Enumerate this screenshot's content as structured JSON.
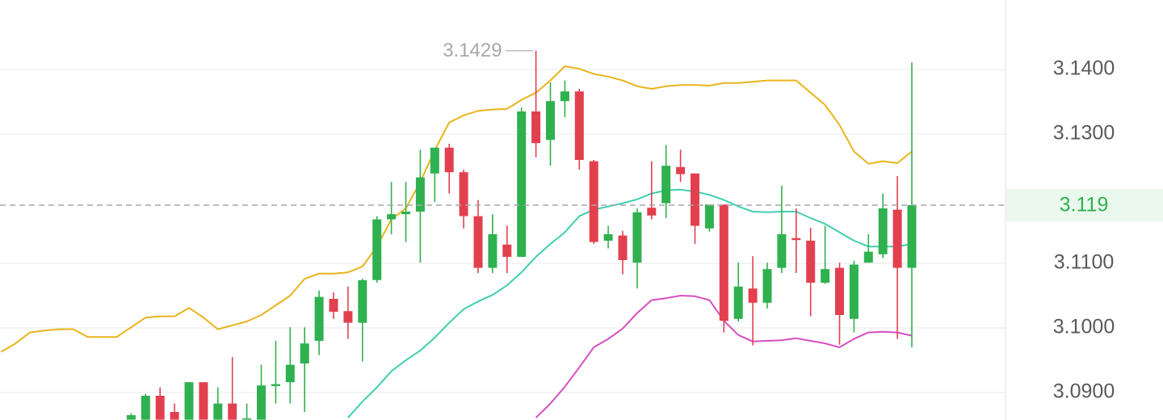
{
  "chart_data": {
    "type": "candlestick",
    "open": [
      null,
      null,
      null,
      null,
      null,
      null,
      null,
      null,
      null,
      3.0858,
      3.0858,
      3.0895,
      3.087,
      3.0858,
      3.0916,
      3.0858,
      3.0883,
      3.0858,
      3.0858,
      3.091,
      3.0916,
      3.0945,
      3.098,
      3.1045,
      3.1026,
      3.1008,
      3.1074,
      3.1168,
      3.1176,
      3.118,
      3.1239,
      3.1279,
      3.1241,
      3.1173,
      3.1093,
      3.1129,
      3.111,
      3.1335,
      3.1291,
      3.1351,
      3.1366,
      3.1258,
      3.1135,
      3.1143,
      3.1101,
      3.1186,
      3.1193,
      3.1249,
      3.1239,
      3.1154,
      3.1191,
      3.1014,
      3.1061,
      3.1039,
      3.1093,
      3.1139,
      3.1135,
      3.107,
      3.1093,
      3.1014,
      3.1101,
      3.1114,
      3.1183,
      3.1093
    ],
    "high": [
      null,
      null,
      null,
      null,
      null,
      null,
      null,
      null,
      null,
      3.0868,
      3.0898,
      3.0908,
      3.0883,
      3.0916,
      3.0916,
      3.0908,
      3.0955,
      3.0883,
      3.0943,
      3.098,
      3.1001,
      3.1001,
      3.1058,
      3.1055,
      3.1064,
      3.1076,
      3.1173,
      3.1226,
      3.1226,
      3.1276,
      3.1279,
      3.1285,
      3.1245,
      3.1198,
      3.1176,
      3.1158,
      3.1341,
      3.1429,
      3.138,
      3.1383,
      3.137,
      3.126,
      3.1158,
      3.115,
      3.1185,
      3.1258,
      3.1283,
      3.1276,
      3.1239,
      3.1191,
      3.1191,
      3.1101,
      3.1111,
      3.1101,
      3.122,
      3.1185,
      3.1155,
      3.1158,
      3.1101,
      3.1104,
      3.1145,
      3.1208,
      3.1235,
      3.1411
    ],
    "low": [
      null,
      null,
      null,
      null,
      null,
      null,
      null,
      null,
      null,
      3.0858,
      3.0858,
      3.0858,
      3.0858,
      3.0858,
      3.0858,
      3.0858,
      3.0858,
      3.0858,
      3.0858,
      3.0883,
      3.0883,
      3.087,
      3.0958,
      3.1014,
      3.0983,
      3.0948,
      3.107,
      3.1145,
      3.1133,
      3.1101,
      3.1195,
      3.1208,
      3.1154,
      3.1085,
      3.1085,
      3.1085,
      3.111,
      3.1264,
      3.1251,
      3.1326,
      3.1245,
      3.113,
      3.1123,
      3.1083,
      3.1061,
      3.1168,
      3.117,
      3.1226,
      3.113,
      3.1149,
      3.0993,
      3.101,
      3.0973,
      3.103,
      3.1085,
      3.1085,
      3.1018,
      3.1068,
      3.0974,
      3.0993,
      3.1101,
      3.1108,
      3.0983,
      3.097
    ],
    "close": [
      null,
      null,
      null,
      null,
      null,
      null,
      null,
      null,
      null,
      3.0865,
      3.0895,
      3.0858,
      3.0858,
      3.0916,
      3.0858,
      3.0883,
      3.0858,
      3.086,
      3.0911,
      3.0913,
      3.0943,
      3.0976,
      3.1048,
      3.1025,
      3.1008,
      3.1074,
      3.1168,
      3.1176,
      3.118,
      3.1233,
      3.1279,
      3.1241,
      3.1173,
      3.1093,
      3.1145,
      3.111,
      3.1335,
      3.1286,
      3.1351,
      3.1366,
      3.126,
      3.1133,
      3.1145,
      3.1105,
      3.1179,
      3.1174,
      3.1251,
      3.1238,
      3.1158,
      3.1191,
      3.1011,
      3.1064,
      3.1039,
      3.1091,
      3.1145,
      3.1136,
      3.107,
      3.1091,
      3.102,
      3.1098,
      3.1118,
      3.1185,
      3.1093,
      3.119
    ],
    "up_color": "#2fb14f",
    "down_color": "#e2404f",
    "overlays": [
      {
        "color": "#e9b41c",
        "values": [
          3.0963,
          3.0976,
          3.0993,
          3.0996,
          3.0998,
          3.0998,
          3.0986,
          3.0986,
          3.0986,
          3.1001,
          3.1016,
          3.1018,
          3.1018,
          3.1031,
          3.1016,
          3.0998,
          3.1004,
          3.101,
          3.102,
          3.1035,
          3.105,
          3.1076,
          3.1084,
          3.1084,
          3.1086,
          3.1095,
          3.1126,
          3.1168,
          3.1185,
          3.1226,
          3.1275,
          3.1318,
          3.1329,
          3.1336,
          3.1338,
          3.1339,
          3.1353,
          3.1364,
          3.1383,
          3.1405,
          3.1401,
          3.1393,
          3.1389,
          3.1383,
          3.1374,
          3.137,
          3.1374,
          3.1376,
          3.1376,
          3.1375,
          3.1379,
          3.1379,
          3.1381,
          3.1383,
          3.1383,
          3.1383,
          3.1364,
          3.1345,
          3.1314,
          3.1273,
          3.1254,
          3.1258,
          3.1255,
          3.1273
        ]
      },
      {
        "color": "#3fcfb1",
        "values": [
          null,
          null,
          null,
          null,
          null,
          null,
          null,
          null,
          null,
          null,
          null,
          null,
          null,
          null,
          null,
          null,
          null,
          null,
          null,
          null,
          null,
          null,
          null,
          null,
          3.0861,
          3.0886,
          3.0908,
          3.0933,
          3.095,
          3.0965,
          3.0985,
          3.1008,
          3.1029,
          3.1041,
          3.1051,
          3.1066,
          3.1086,
          3.111,
          3.113,
          3.1148,
          3.1173,
          3.1183,
          3.1188,
          3.1193,
          3.1199,
          3.1208,
          3.1213,
          3.1214,
          3.1211,
          3.1206,
          3.1198,
          3.1188,
          3.118,
          3.1179,
          3.118,
          3.118,
          3.117,
          3.1161,
          3.1148,
          3.1135,
          3.1126,
          3.1126,
          3.1126,
          3.113
        ]
      },
      {
        "color": "#d54fc2",
        "values": [
          null,
          null,
          null,
          null,
          null,
          null,
          null,
          null,
          null,
          null,
          null,
          null,
          null,
          null,
          null,
          null,
          null,
          null,
          null,
          null,
          null,
          null,
          null,
          null,
          null,
          null,
          null,
          null,
          null,
          null,
          null,
          null,
          null,
          null,
          null,
          null,
          null,
          3.0861,
          3.0883,
          3.0909,
          3.0939,
          3.097,
          3.0983,
          3.0999,
          3.1023,
          3.1043,
          3.1046,
          3.105,
          3.1049,
          3.1043,
          3.1011,
          3.0989,
          3.0979,
          3.098,
          3.0981,
          3.0984,
          3.098,
          3.0976,
          3.097,
          3.0983,
          3.0993,
          3.0994,
          3.0993,
          3.0988
        ]
      }
    ],
    "current_price": 3.119,
    "current_color": "#2fb14f",
    "ylim": [
      3.08575,
      3.15075
    ],
    "yticks": [
      {
        "value": 3.14,
        "label": "3.1400"
      },
      {
        "value": 3.13,
        "label": "3.1300"
      },
      {
        "value": 3.11,
        "label": "3.1100"
      },
      {
        "value": 3.1,
        "label": "3.1000"
      },
      {
        "value": 3.09,
        "label": "3.0900"
      }
    ],
    "grid": true
  }
}
